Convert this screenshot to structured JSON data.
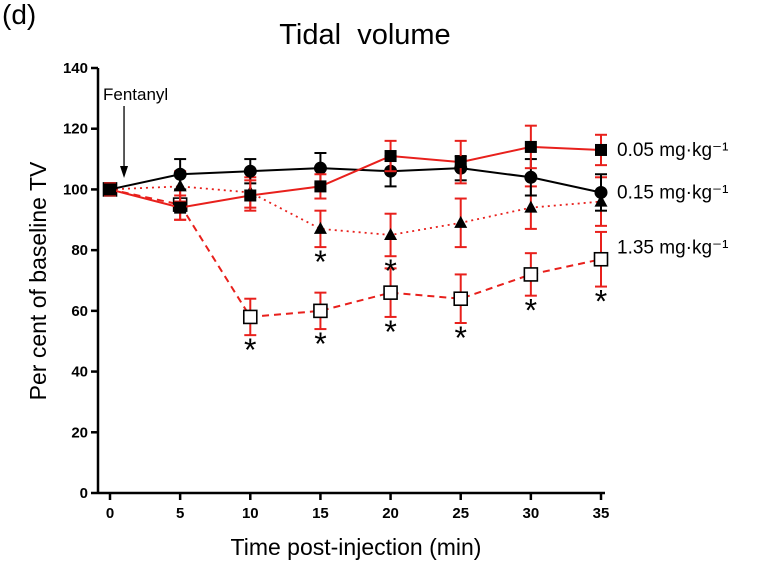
{
  "panel_label": "(d)",
  "chart_data": {
    "type": "line",
    "title": "Tidal  volume",
    "xlabel": "Time post-injection (min)",
    "ylabel": "Per cent of baseline TV",
    "x": [
      0,
      5,
      10,
      15,
      20,
      25,
      30,
      35
    ],
    "xticks": [
      "0",
      "5",
      "10",
      "15",
      "20",
      "25",
      "30",
      "35"
    ],
    "yticks": [
      "0",
      "20",
      "40",
      "60",
      "80",
      "100",
      "120",
      "140"
    ],
    "xlim": [
      0,
      35
    ],
    "ylim": [
      0,
      140
    ],
    "grid": false,
    "annotation": {
      "text": "Fentanyl",
      "x": 1
    },
    "series": [
      {
        "name": "0.05 mg·kg⁻¹",
        "marker": "filled-square",
        "color": "#e8201c",
        "line": "solid",
        "values": [
          100,
          94,
          98,
          101,
          111,
          109,
          114,
          113
        ],
        "errors": [
          2,
          4,
          5,
          4,
          5,
          7,
          7,
          5
        ],
        "significant": [
          false,
          false,
          false,
          false,
          false,
          false,
          false,
          false
        ]
      },
      {
        "name": "0.15 mg·kg⁻¹",
        "marker": "filled-circle",
        "color": "#000000",
        "line": "solid",
        "values": [
          100,
          105,
          106,
          107,
          106,
          107,
          104,
          99
        ],
        "errors": [
          2,
          5,
          4,
          5,
          5,
          4,
          6,
          6
        ],
        "significant": [
          false,
          false,
          false,
          false,
          false,
          false,
          false,
          false
        ]
      },
      {
        "name": "",
        "marker": "filled-triangle",
        "color": "#e8201c",
        "line": "dotted",
        "values": [
          100,
          101,
          99,
          87,
          85,
          89,
          94,
          96
        ],
        "errors": [
          2,
          5,
          5,
          6,
          7,
          8,
          7,
          8
        ],
        "significant": [
          false,
          false,
          false,
          true,
          true,
          false,
          false,
          false
        ]
      },
      {
        "name": "1.35 mg·kg⁻¹",
        "marker": "open-square",
        "color": "#e8201c",
        "line": "dashed",
        "values": [
          100,
          95,
          58,
          60,
          66,
          64,
          72,
          77
        ],
        "errors": [
          2,
          5,
          6,
          6,
          8,
          8,
          7,
          9
        ],
        "significant": [
          false,
          false,
          true,
          true,
          true,
          true,
          true,
          true
        ]
      }
    ],
    "significance_symbol": "*"
  }
}
